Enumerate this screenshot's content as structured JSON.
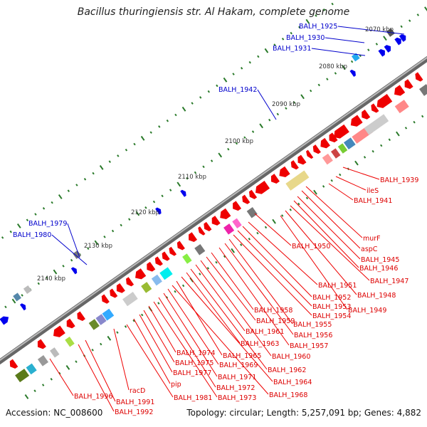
{
  "title": "Bacillus thuringiensis str. Al Hakam, complete genome",
  "footer": {
    "accession": "Accession: NC_008600",
    "summary": "Topology: circular; Length: 5,257,091 bp; Genes: 4,882"
  },
  "colors": {
    "forward_gene": "#0000ee",
    "reverse_gene": "#ee0000",
    "backbone": "#888888",
    "tick": "#2a7a2a",
    "label_line_red": "#ee0000",
    "label_line_blue": "#0000cc"
  },
  "kbp_ticks": [
    "2070 kbp",
    "2080 kbp",
    "2090 kbp",
    "2100 kbp",
    "2110 kbp",
    "2120 kbp",
    "2130 kbp",
    "2140 kbp"
  ],
  "forward_labels": [
    "BALH_1925",
    "BALH_1930",
    "BALH_1931",
    "BALH_1942",
    "BALH_1979",
    "BALH_1980"
  ],
  "reverse_labels": [
    "BALH_1939",
    "ileS",
    "BALH_1941",
    "murF",
    "aspC",
    "BALH_1945",
    "BALH_1946",
    "BALH_1947",
    "BALH_1948",
    "BALH_1949",
    "BALH_1950",
    "BALH_1951",
    "BALH_1952",
    "BALH_1953",
    "BALH_1954",
    "BALH_1955",
    "BALH_1956",
    "BALH_1957",
    "BALH_1958",
    "BALH_1959",
    "BALH_1960",
    "BALH_1961",
    "BALH_1962",
    "BALH_1963",
    "BALH_1964",
    "BALH_1965",
    "BALH_1968",
    "BALH_1969",
    "BALH_1971",
    "BALH_1972",
    "BALH_1973",
    "BALH_1974",
    "BALH_1975",
    "BALH_1977",
    "pip",
    "BALH_1981",
    "racD",
    "BALH_1991",
    "BALH_1992",
    "BALH_1996"
  ]
}
